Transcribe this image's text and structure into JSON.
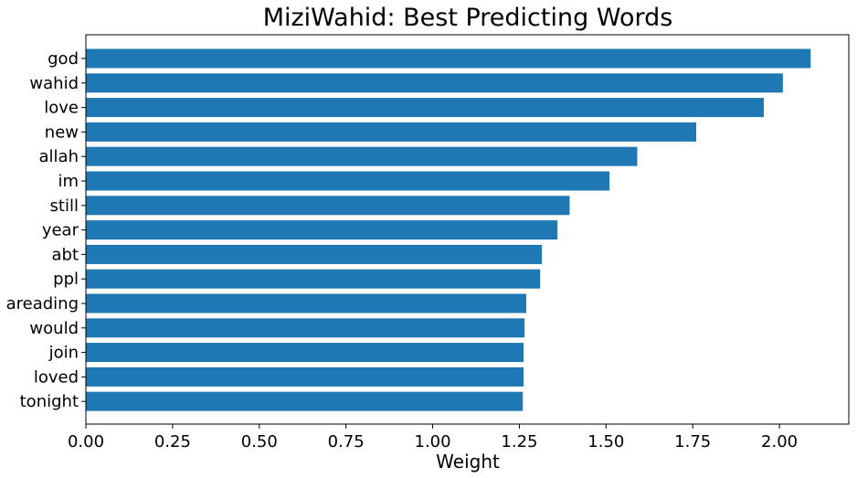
{
  "chart_data": {
    "type": "bar",
    "orientation": "horizontal",
    "title": "MiziWahid: Best Predicting Words",
    "xlabel": "Weight",
    "ylabel": "",
    "categories": [
      "god",
      "wahid",
      "love",
      "new",
      "allah",
      "im",
      "still",
      "year",
      "abt",
      "ppl",
      "areading",
      "would",
      "join",
      "loved",
      "tonight"
    ],
    "values": [
      2.09,
      2.01,
      1.955,
      1.76,
      1.59,
      1.51,
      1.395,
      1.36,
      1.315,
      1.31,
      1.27,
      1.265,
      1.262,
      1.262,
      1.26
    ],
    "xlim": [
      0,
      2.2
    ],
    "xticks": [
      "0.00",
      "0.25",
      "0.50",
      "0.75",
      "1.00",
      "1.25",
      "1.50",
      "1.75",
      "2.00"
    ],
    "bar_color": "#1f77b4",
    "grid": false,
    "legend": "none"
  }
}
